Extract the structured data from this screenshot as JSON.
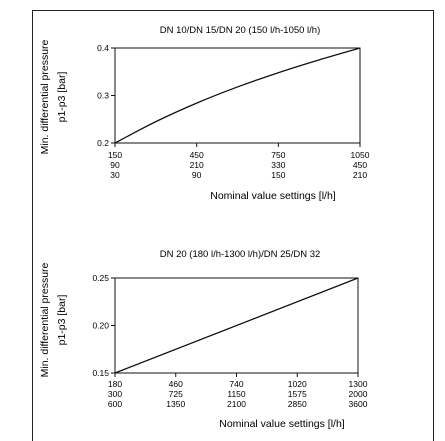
{
  "chart_data": [
    {
      "type": "line",
      "title": "DN 10/DN 15/DN 20 (150 l/h-1050 l/h)",
      "ylabel_lines": [
        "Min. differential pressure",
        "p1-p3 [bar]"
      ],
      "xlabel": "Nominal value settings [l/h]",
      "ylim": [
        0.2,
        0.4
      ],
      "yticks": [
        {
          "value": 0.2,
          "label": "0.2"
        },
        {
          "value": 0.3,
          "label": "0.3"
        },
        {
          "value": 0.4,
          "label": "0.4"
        }
      ],
      "xlim": [
        150,
        1050
      ],
      "xtick_rows": [
        [
          {
            "x": 150,
            "rows": [
              "150",
              "90",
              "30"
            ]
          },
          {
            "x": 450,
            "rows": [
              "450",
              "210",
              "90"
            ]
          },
          {
            "x": 750,
            "rows": [
              "750",
              "330",
              "150"
            ]
          },
          {
            "x": 1050,
            "rows": [
              "1050",
              "450",
              "210"
            ]
          }
        ]
      ],
      "series": [
        {
          "x": [
            150,
            300,
            450,
            600,
            750,
            900,
            1050
          ],
          "y": [
            0.2,
            0.245,
            0.284,
            0.318,
            0.348,
            0.375,
            0.4
          ]
        }
      ]
    },
    {
      "type": "line",
      "title": "DN 20 (180 l/h-1300 l/h)/DN 25/DN 32",
      "ylabel_lines": [
        "Min. differential pressure",
        "p1-p3 [bar]"
      ],
      "xlabel": "Nominal value settings [l/h]",
      "ylim": [
        0.15,
        0.25
      ],
      "yticks": [
        {
          "value": 0.15,
          "label": "0.15"
        },
        {
          "value": 0.2,
          "label": "0.20"
        },
        {
          "value": 0.25,
          "label": "0.25"
        }
      ],
      "xlim": [
        180,
        1300
      ],
      "xtick_rows": [
        [
          {
            "x": 180,
            "rows": [
              "180",
              "300",
              "600"
            ]
          },
          {
            "x": 460,
            "rows": [
              "460",
              "725",
              "1350"
            ]
          },
          {
            "x": 740,
            "rows": [
              "740",
              "1150",
              "2100"
            ]
          },
          {
            "x": 1020,
            "rows": [
              "1020",
              "1575",
              "2850"
            ]
          },
          {
            "x": 1300,
            "rows": [
              "1300",
              "2000",
              "3600"
            ]
          }
        ]
      ],
      "series": [
        {
          "x": [
            180,
            1300
          ],
          "y": [
            0.15,
            0.25
          ]
        }
      ]
    }
  ]
}
